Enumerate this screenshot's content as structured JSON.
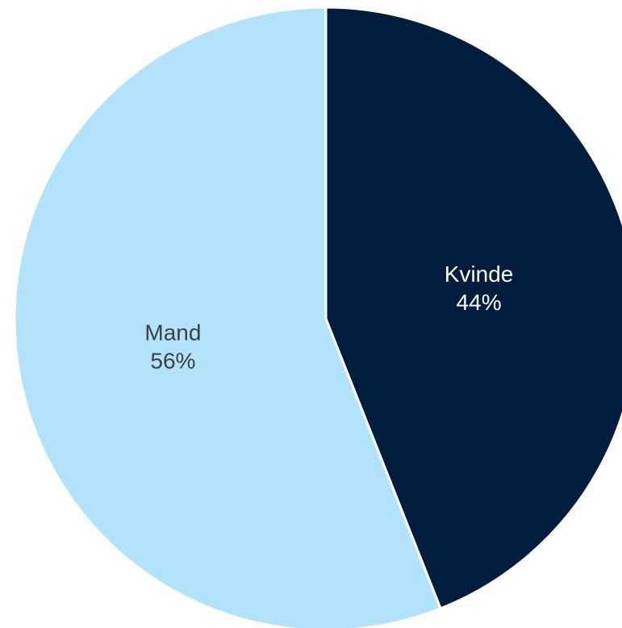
{
  "chart_data": {
    "type": "pie",
    "slices": [
      {
        "label": "Kvinde",
        "percent_label": "44%",
        "value": 44,
        "color": "#001D3D",
        "label_color": "#FFFFFF"
      },
      {
        "label": "Mand",
        "percent_label": "56%",
        "value": 56,
        "color": "#B3E3FC",
        "label_color": "#404040"
      }
    ],
    "start": "12 o'clock",
    "direction": "clockwise"
  }
}
